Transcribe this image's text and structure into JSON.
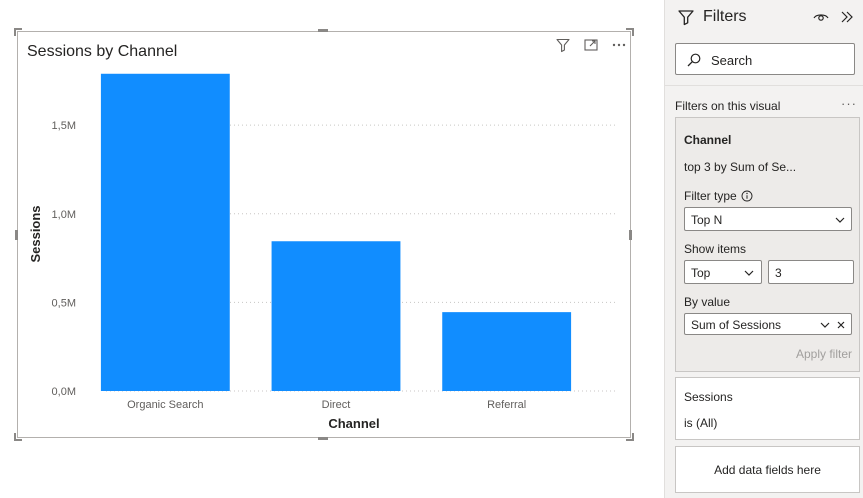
{
  "visual": {
    "title": "Sessions by Channel",
    "header_icons": [
      "filter-icon",
      "focus-mode-icon",
      "more-options-icon"
    ]
  },
  "chart_data": {
    "type": "bar",
    "title": "Sessions by Channel",
    "categories": [
      "Organic Search",
      "Direct",
      "Referral"
    ],
    "values": [
      1790000,
      845000,
      445000
    ],
    "xlabel": "Channel",
    "ylabel": "Sessions",
    "ylim": [
      0,
      1800000
    ],
    "yticks": [
      {
        "value": 0,
        "label": "0,0M"
      },
      {
        "value": 500000,
        "label": "0,5M"
      },
      {
        "value": 1000000,
        "label": "1,0M"
      },
      {
        "value": 1500000,
        "label": "1,5M"
      }
    ],
    "grid": true,
    "bar_color": "#118dff"
  },
  "filters_pane": {
    "title": "Filters",
    "search": {
      "placeholder": "Search"
    },
    "section_label": "Filters on this visual",
    "channel_card": {
      "title": "Channel",
      "summary": "top 3 by Sum of Se...",
      "filter_type_label": "Filter type",
      "filter_type_value": "Top N",
      "show_items_label": "Show items",
      "show_items_direction": "Top",
      "show_items_count": "3",
      "by_value_label": "By value",
      "by_value_field": "Sum of Sessions",
      "apply_label": "Apply filter"
    },
    "sessions_card": {
      "title": "Sessions",
      "summary": "is (All)"
    },
    "add_fields_label": "Add data fields here"
  },
  "colors": {
    "accent": "#118dff",
    "pane_bg": "#f3f2f1"
  }
}
